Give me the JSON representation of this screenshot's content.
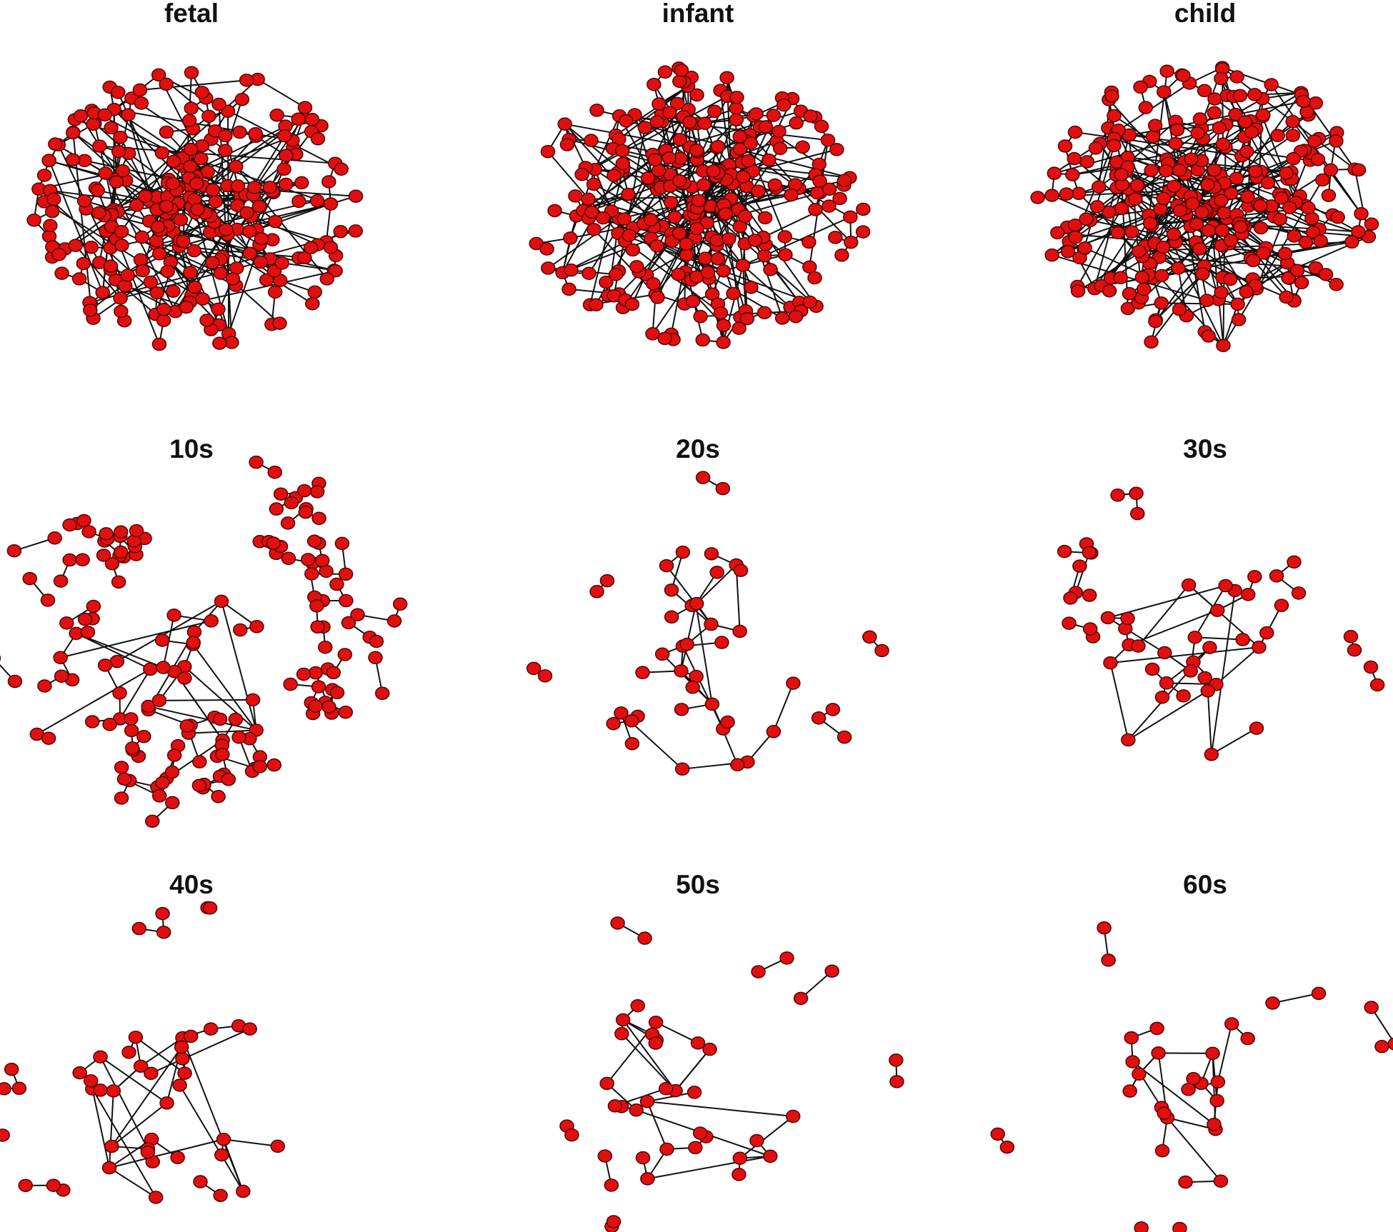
{
  "panels": [
    {
      "title": "fetal"
    },
    {
      "title": "infant"
    },
    {
      "title": "child"
    },
    {
      "title": "10s"
    },
    {
      "title": "20s"
    },
    {
      "title": "30s"
    },
    {
      "title": "40s"
    },
    {
      "title": "50s"
    },
    {
      "title": "60s"
    }
  ]
}
